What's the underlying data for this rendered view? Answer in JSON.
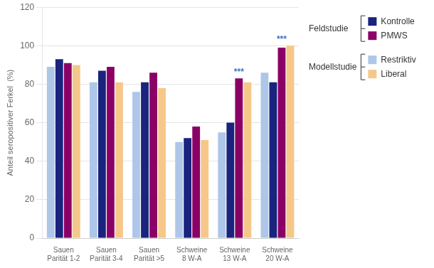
{
  "chart_data": {
    "type": "bar",
    "categories": [
      "Sauen\nParität 1-2",
      "Sauen\nParität 3-4",
      "Sauen\nParität >5",
      "Schweine\n8 W-A",
      "Schweine\n13 W-A",
      "Schweine\n20 W-A"
    ],
    "series": [
      {
        "name": "Restriktiv",
        "color": "#aec6e8",
        "values": [
          89,
          81,
          76,
          50,
          55,
          86
        ]
      },
      {
        "name": "Kontrolle",
        "color": "#1a237e",
        "values": [
          93,
          87,
          81,
          52,
          60,
          81
        ]
      },
      {
        "name": "PMWS",
        "color": "#8b0066",
        "values": [
          91,
          89,
          86,
          58,
          83,
          99
        ]
      },
      {
        "name": "Liberal",
        "color": "#f5c88a",
        "values": [
          90,
          81,
          78,
          51,
          81,
          100
        ]
      }
    ],
    "ylabel": "Anteil seropositiver Ferkel  (%)",
    "ylim": [
      0,
      120
    ],
    "yticks": [
      0,
      20,
      40,
      60,
      80,
      100,
      120
    ],
    "grid": true,
    "legend": "right",
    "legend_groups": [
      {
        "label": "Feldstudie",
        "series": [
          "Kontrolle",
          "PMWS"
        ]
      },
      {
        "label": "Modellstudie",
        "series": [
          "Restriktiv",
          "Liberal"
        ]
      }
    ],
    "annotations": [
      {
        "text": "***",
        "category": "Schweine\n13 W-A",
        "series": "PMWS",
        "color": "#4472c4"
      },
      {
        "text": "***",
        "category": "Schweine\n20 W-A",
        "series": "PMWS",
        "color": "#4472c4"
      }
    ]
  }
}
